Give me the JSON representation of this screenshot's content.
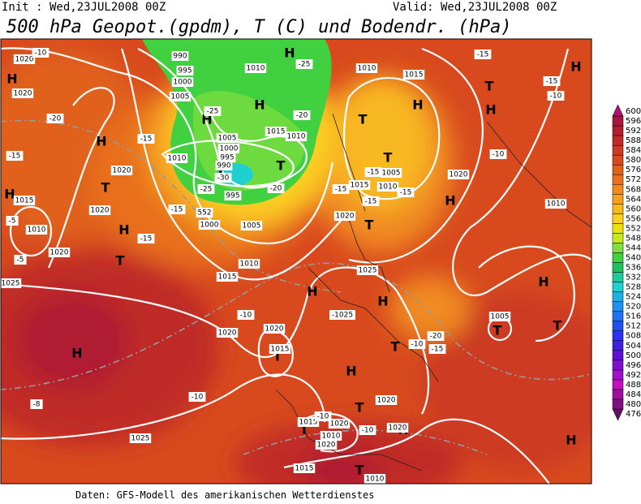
{
  "header": {
    "init": "Init : Wed,23JUL2008 00Z",
    "valid": "Valid: Wed,23JUL2008 00Z",
    "title": "500 hPa Geopot.(gpdm), T (C) und Bodendr. (hPa)"
  },
  "footer": "Daten: GFS-Modell des amerikanischen Wetterdienstes",
  "colorbar": {
    "labels": [
      476,
      480,
      484,
      488,
      492,
      496,
      500,
      504,
      508,
      512,
      516,
      520,
      524,
      528,
      532,
      536,
      540,
      544,
      548,
      552,
      556,
      560,
      564,
      568,
      572,
      576,
      580,
      584,
      588,
      592,
      596,
      600
    ],
    "colors": [
      "#601060",
      "#801080",
      "#a010a0",
      "#c010c0",
      "#a010c8",
      "#8010d0",
      "#6010d0",
      "#4020e0",
      "#3030f0",
      "#2050f0",
      "#2070f0",
      "#2090f0",
      "#20b0e0",
      "#20d0d0",
      "#20c8a0",
      "#20c060",
      "#40d040",
      "#80e040",
      "#c8e820",
      "#f0e010",
      "#fcd020",
      "#f8b820",
      "#f4a020",
      "#f08a20",
      "#e8701e",
      "#e0601c",
      "#d84a1e",
      "#cc3a20",
      "#c02a28",
      "#b01e30",
      "#a8163c",
      "#b0106e"
    ]
  },
  "map_labels": [
    "H",
    "H",
    "H",
    "H",
    "H",
    "T",
    "T",
    "T",
    "T",
    "H",
    "T",
    "H",
    "H",
    "T",
    "H",
    "T",
    "H",
    "H",
    "T",
    "H",
    "H",
    "T",
    "H",
    "H",
    "T",
    "T",
    "H",
    "T",
    "T",
    "H",
    "T",
    "T",
    "H",
    "1020",
    "-10",
    "1020",
    "-20",
    "-15",
    "1015",
    "1010",
    "-5",
    "-5",
    "1025",
    "1020",
    "1020",
    "-15",
    "1020",
    "-15",
    "-15",
    "1000",
    "1005",
    "1010",
    "1015",
    "990",
    "995",
    "1000",
    "1005",
    "1010",
    "-25",
    "-25",
    "1005",
    "1000",
    "995",
    "990",
    "-30",
    "-25",
    "995",
    "-20",
    "1010",
    "552",
    "1015",
    "1010",
    "-20",
    "1010",
    "1015",
    "-15",
    "1005",
    "1010",
    "1015",
    "-15",
    "-15",
    "-15",
    "-15",
    "1020",
    "1020",
    "-10",
    "1010",
    "1025",
    "-1025",
    "-10",
    "1020",
    "1020",
    "1015",
    "1005",
    "-20",
    "-15",
    "-10",
    "-10",
    "-8",
    "1025",
    "1015",
    "1020",
    "1010",
    "1020",
    "-10",
    "1020",
    "1020",
    "1015",
    "1010",
    "-10",
    "-15",
    "-10"
  ]
}
